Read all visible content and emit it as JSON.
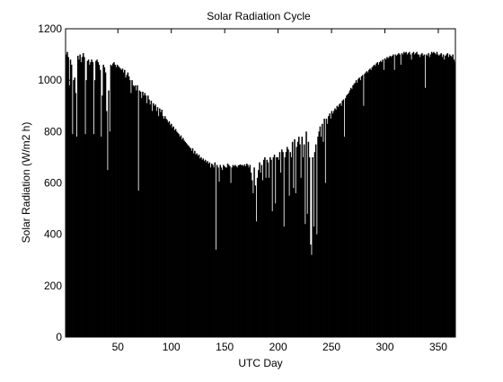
{
  "chart_data": {
    "type": "bar",
    "title": "Solar Radiation Cycle",
    "xlabel": "UTC Day",
    "ylabel": "Solar Radiation (W/m2 h)",
    "xlim": [
      1,
      366
    ],
    "ylim": [
      0,
      1200
    ],
    "x_ticks": [
      50,
      100,
      150,
      200,
      250,
      300,
      350
    ],
    "y_ticks": [
      0,
      200,
      400,
      600,
      800,
      1000,
      1200
    ],
    "grid": false,
    "legend": "none",
    "bar_color": "#000000",
    "series": [
      {
        "x_start": 1,
        "x_step": 1,
        "values": [
          1100,
          1110,
          1090,
          980,
          1080,
          1060,
          790,
          1000,
          1010,
          950,
          780,
          1095,
          1080,
          1100,
          1070,
          1090,
          1105,
          1090,
          790,
          1000,
          1075,
          1080,
          1060,
          1070,
          1080,
          1070,
          790,
          1000,
          1075,
          1080,
          1070,
          1060,
          1040,
          780,
          940,
          1060,
          1050,
          1030,
          880,
          650,
          960,
          800,
          1060,
          1055,
          1065,
          1070,
          1060,
          1050,
          1060,
          1055,
          1050,
          1045,
          1040,
          1045,
          1030,
          1040,
          1010,
          1020,
          1030,
          1015,
          1000,
          950,
          1000,
          980,
          975,
          980,
          960,
          980,
          570,
          960,
          955,
          930,
          955,
          940,
          950,
          940,
          910,
          940,
          925,
          905,
          920,
          880,
          910,
          900,
          905,
          880,
          895,
          860,
          890,
          875,
          885,
          860,
          850,
          860,
          850,
          845,
          835,
          840,
          825,
          830,
          815,
          820,
          805,
          810,
          800,
          795,
          790,
          780,
          785,
          770,
          775,
          765,
          760,
          755,
          750,
          745,
          740,
          735,
          725,
          735,
          715,
          725,
          710,
          715,
          705,
          710,
          695,
          700,
          690,
          695,
          685,
          690,
          680,
          685,
          675,
          680,
          660,
          675,
          670,
          660,
          680,
          340,
          670,
          660,
          605,
          670,
          660,
          650,
          670,
          665,
          660,
          660,
          675,
          670,
          665,
          600,
          660,
          670,
          665,
          670,
          665,
          660,
          668,
          670,
          672,
          668,
          670,
          665,
          672,
          665,
          675,
          670,
          660,
          670,
          640,
          610,
          560,
          660,
          590,
          450,
          620,
          650,
          680,
          640,
          670,
          610,
          690,
          700,
          620,
          690,
          680,
          620,
          700,
          690,
          490,
          700,
          710,
          520,
          700,
          700,
          690,
          720,
          640,
          730,
          720,
          430,
          700,
          720,
          740,
          730,
          550,
          720,
          700,
          760,
          580,
          770,
          560,
          740,
          760,
          780,
          750,
          620,
          780,
          700,
          750,
          440,
          800,
          480,
          760,
          700,
          360,
          320,
          700,
          430,
          720,
          750,
          400,
          780,
          800,
          820,
          780,
          830,
          760,
          850,
          600,
          850,
          830,
          860,
          870,
          850,
          880,
          870,
          880,
          890,
          885,
          900,
          895,
          905,
          910,
          900,
          920,
          925,
          780,
          930,
          940,
          945,
          950,
          960,
          970,
          965,
          980,
          985,
          990,
          1000,
          990,
          1005,
          1010,
          1000,
          1015,
          1020,
          900,
          1025,
          1030,
          1035,
          1030,
          1040,
          1045,
          1040,
          1050,
          1055,
          1060,
          1055,
          1065,
          1070,
          1060,
          1070,
          1075,
          1070,
          1080,
          1040,
          1085,
          1080,
          1090,
          1085,
          1090,
          1095,
          1090,
          1095,
          1100,
          1040,
          1100,
          1095,
          1100,
          1105,
          1100,
          1060,
          1105,
          1100,
          1110,
          1105,
          1110,
          1100,
          1105,
          1110,
          1100,
          1080,
          1105,
          1110,
          1100,
          1105,
          1110,
          1100,
          1100,
          1090,
          1100,
          1105,
          1095,
          1100,
          970,
          1100,
          1095,
          1105,
          1090,
          1100,
          1110,
          1105,
          1110,
          1105,
          1100,
          1110,
          1100,
          1095,
          1100,
          1105,
          1090,
          1100,
          1080,
          1095,
          1100,
          1105,
          1090,
          1100,
          1095,
          1090,
          1100,
          1080,
          1070
        ]
      }
    ]
  }
}
